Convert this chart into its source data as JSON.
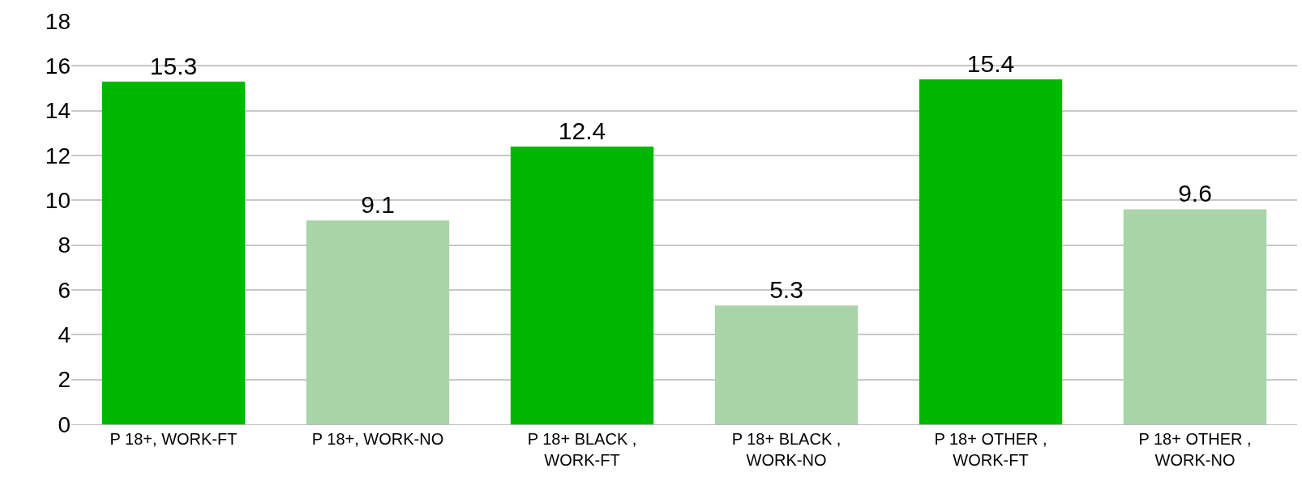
{
  "chart_data": {
    "type": "bar",
    "categories": [
      "P 18+, WORK-FT",
      "P 18+, WORK-NO",
      "P 18+ BLACK , WORK-FT",
      "P 18+ BLACK , WORK-NO",
      "P 18+ OTHER , WORK-FT",
      "P 18+ OTHER , WORK-NO"
    ],
    "values": [
      15.3,
      9.1,
      12.4,
      5.3,
      15.4,
      9.6
    ],
    "colors": [
      "#00b800",
      "#a8d4a8",
      "#00b800",
      "#a8d4a8",
      "#00b800",
      "#a8d4a8"
    ],
    "ylim": [
      0,
      18
    ],
    "yticks": [
      0,
      2,
      4,
      6,
      8,
      10,
      12,
      14,
      16,
      18
    ],
    "grid": "y",
    "data_labels": true
  }
}
